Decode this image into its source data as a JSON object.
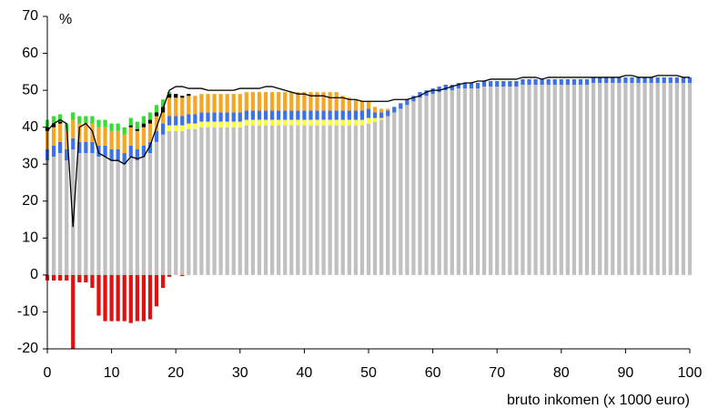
{
  "chart_data": {
    "type": "bar",
    "stacked": true,
    "y_unit_label": "%",
    "x_label": "bruto inkomen (x 1000 euro)",
    "x": [
      0,
      1,
      2,
      3,
      4,
      5,
      6,
      7,
      8,
      9,
      10,
      11,
      12,
      13,
      14,
      15,
      16,
      17,
      18,
      19,
      20,
      21,
      22,
      23,
      24,
      25,
      26,
      27,
      28,
      29,
      30,
      31,
      32,
      33,
      34,
      35,
      36,
      37,
      38,
      39,
      40,
      41,
      42,
      43,
      44,
      45,
      46,
      47,
      48,
      49,
      50,
      51,
      52,
      53,
      54,
      55,
      56,
      57,
      58,
      59,
      60,
      61,
      62,
      63,
      64,
      65,
      66,
      67,
      68,
      69,
      70,
      71,
      72,
      73,
      74,
      75,
      76,
      77,
      78,
      79,
      80,
      81,
      82,
      83,
      84,
      85,
      86,
      87,
      88,
      89,
      90,
      91,
      92,
      93,
      94,
      95,
      96,
      97,
      98,
      99,
      100
    ],
    "series": [
      {
        "color": "#c0c0c0",
        "values": [
          31,
          32,
          33,
          31,
          34,
          33,
          33,
          33,
          32,
          32,
          31,
          31,
          30,
          32,
          31,
          32,
          33,
          36,
          38,
          39,
          39,
          39,
          39.5,
          39.5,
          40,
          40,
          40,
          40,
          40,
          40,
          40,
          40.5,
          40.5,
          40.5,
          40.5,
          40.5,
          40.5,
          40.5,
          40.5,
          40.5,
          40.5,
          40.5,
          40.5,
          40.5,
          40.5,
          40.5,
          40.5,
          40.5,
          40.5,
          40.5,
          41,
          41.5,
          42,
          43,
          44,
          45,
          46,
          47,
          48,
          48.5,
          49,
          49.5,
          50,
          50,
          50.5,
          50.5,
          50.5,
          50.5,
          51,
          51,
          51,
          51,
          51,
          51,
          51.5,
          51.5,
          51.5,
          51.5,
          51.5,
          51.5,
          51.5,
          51.5,
          51.5,
          51.5,
          51.5,
          52,
          52,
          52,
          52,
          52,
          52,
          52,
          52,
          52,
          52,
          52,
          52,
          52,
          52,
          52,
          52
        ]
      },
      {
        "color": "#ffff33",
        "values": [
          0,
          0,
          0,
          0,
          0,
          0,
          0,
          0,
          0,
          0,
          0,
          0,
          0,
          0,
          0,
          0,
          0,
          0,
          0,
          1.5,
          1.5,
          1.5,
          1.5,
          1.5,
          1.5,
          1.5,
          1.5,
          1.5,
          1.5,
          1.5,
          1.5,
          1.5,
          1.5,
          1.5,
          1.5,
          1.5,
          1.5,
          1.5,
          1.5,
          1.5,
          1.5,
          1.5,
          1.5,
          1.5,
          1.5,
          1.5,
          1.5,
          1.5,
          1.5,
          1.5,
          1.5,
          1,
          0.5,
          0,
          0,
          0,
          0,
          0,
          0,
          0,
          0,
          0,
          0,
          0,
          0,
          0,
          0,
          0,
          0,
          0,
          0,
          0,
          0,
          0,
          0,
          0,
          0,
          0,
          0,
          0,
          0,
          0,
          0,
          0,
          0,
          0,
          0,
          0,
          0,
          0,
          0,
          0,
          0,
          0,
          0,
          0,
          0,
          0,
          0,
          0,
          0
        ]
      },
      {
        "color": "#3d72e6",
        "values": [
          3,
          3,
          3,
          3,
          3,
          3,
          3,
          3,
          3,
          3,
          3,
          3,
          3,
          3,
          3,
          3,
          3,
          3,
          3,
          2.5,
          2.5,
          2.5,
          2.5,
          2.5,
          2.5,
          2.5,
          2.5,
          2.5,
          2.5,
          2.5,
          2.5,
          2.5,
          2.5,
          2.5,
          2.5,
          2.5,
          2.5,
          2.5,
          2.5,
          2.5,
          2.5,
          2.5,
          2.5,
          2.5,
          2.5,
          2.5,
          2.5,
          2.5,
          2.5,
          2.5,
          2.5,
          1.5,
          1.5,
          1.5,
          1.5,
          1.5,
          1.5,
          1.5,
          1.5,
          1.5,
          1.5,
          1.5,
          1.5,
          1.5,
          1.5,
          1.5,
          1.5,
          1.5,
          1.5,
          1.5,
          1.5,
          1.5,
          1.5,
          1.5,
          1.5,
          1.5,
          1.5,
          1.5,
          1.5,
          1.5,
          1.5,
          1.5,
          1.5,
          1.5,
          1.5,
          1.5,
          1.5,
          1.5,
          1.5,
          1.5,
          1.5,
          1.5,
          1.5,
          1.5,
          1.5,
          1.5,
          1.5,
          1.5,
          1.5,
          1.5,
          1.5
        ]
      },
      {
        "color": "#f5a623",
        "values": [
          5,
          5,
          5,
          5,
          5,
          5,
          5,
          5,
          5,
          5,
          5,
          5,
          5,
          5,
          5,
          5,
          5,
          4,
          3,
          5,
          5,
          5,
          5,
          5,
          5,
          5,
          5,
          5,
          5,
          5,
          5,
          5,
          5,
          5,
          5,
          5,
          5,
          5,
          5,
          5,
          5,
          5,
          5,
          5,
          5,
          5,
          4,
          3.5,
          3,
          2.5,
          2,
          1.5,
          1,
          0.5,
          0,
          0,
          0,
          0,
          0,
          0,
          0,
          0,
          0,
          0,
          0,
          0,
          0,
          0,
          0,
          0,
          0,
          0,
          0,
          0,
          0,
          0,
          0,
          0,
          0,
          0,
          0,
          0,
          0,
          0,
          0,
          0,
          0,
          0,
          0,
          0,
          0,
          0,
          0,
          0,
          0,
          0,
          0,
          0,
          0,
          0,
          0
        ]
      },
      {
        "color": "#000000",
        "values": [
          1,
          1,
          0.5,
          0,
          0,
          0,
          0,
          0,
          0,
          0,
          0,
          0,
          0,
          0.5,
          0.5,
          1,
          1,
          1,
          1.5,
          1,
          1,
          0.5,
          0.5,
          0,
          0,
          0,
          0,
          0,
          0,
          0,
          0,
          0,
          0,
          0,
          0,
          0,
          0,
          0,
          0,
          0,
          0,
          0,
          0,
          0,
          0,
          0,
          0,
          0,
          0,
          0,
          0,
          0,
          0,
          0,
          0,
          0,
          0,
          0,
          0,
          0,
          0,
          0,
          0,
          0,
          0,
          0,
          0,
          0,
          0,
          0,
          0,
          0,
          0,
          0,
          0,
          0,
          0,
          0,
          0,
          0,
          0,
          0,
          0,
          0,
          0,
          0,
          0,
          0,
          0,
          0,
          0,
          0,
          0,
          0,
          0,
          0,
          0,
          0,
          0,
          0,
          0
        ]
      },
      {
        "color": "#33dd33",
        "values": [
          2,
          2,
          2,
          2,
          2,
          2,
          2,
          2,
          2,
          2,
          2,
          2,
          2,
          2,
          2,
          2,
          2,
          2,
          2,
          0.5,
          0,
          0,
          0,
          0,
          0,
          0,
          0,
          0,
          0,
          0,
          0,
          0,
          0,
          0,
          0,
          0,
          0,
          0,
          0,
          0,
          0,
          0,
          0,
          0,
          0,
          0,
          0,
          0,
          0,
          0,
          0,
          0,
          0,
          0,
          0,
          0,
          0,
          0,
          0,
          0,
          0,
          0,
          0,
          0,
          0,
          0,
          0,
          0,
          0,
          0,
          0,
          0,
          0,
          0,
          0,
          0,
          0,
          0,
          0,
          0,
          0,
          0,
          0,
          0,
          0,
          0,
          0,
          0,
          0,
          0,
          0,
          0,
          0,
          0,
          0,
          0,
          0,
          0,
          0,
          0,
          0
        ]
      },
      {
        "color": "#e01010",
        "values": [
          -1.5,
          -1.5,
          -1.5,
          -1.5,
          -20,
          -2,
          -2,
          -3.5,
          -11,
          -12.5,
          -12.5,
          -12.5,
          -12.5,
          -13,
          -12.5,
          -12.5,
          -12,
          -8.5,
          -3.5,
          -0.5,
          0,
          -0.3,
          0,
          0,
          0,
          0,
          0,
          0,
          0,
          0,
          0,
          0,
          0,
          0,
          0,
          0,
          0,
          0,
          0,
          0,
          0,
          0,
          0,
          0,
          0,
          0,
          0,
          0,
          0,
          0,
          0,
          0,
          0,
          0,
          0,
          0,
          0,
          0,
          0,
          0,
          0,
          0,
          0,
          0,
          0,
          0,
          0,
          0,
          0,
          0,
          0,
          0,
          0,
          0,
          0,
          0,
          0,
          0,
          0,
          0,
          0,
          0,
          0,
          0,
          0,
          0,
          0,
          0,
          0,
          0,
          0,
          0,
          0,
          0,
          0,
          0,
          0,
          0,
          0,
          0,
          0
        ]
      }
    ],
    "line": {
      "color": "#000000",
      "values": [
        39,
        41,
        42,
        41,
        13,
        40,
        41,
        39,
        33,
        32,
        31,
        31,
        30,
        32,
        31.5,
        32,
        35,
        40,
        45,
        50,
        51,
        51,
        50.5,
        50.5,
        50.5,
        50,
        50,
        50,
        50,
        50,
        50.5,
        50.5,
        50.5,
        50.5,
        51,
        51,
        50.5,
        50,
        49.5,
        49,
        49,
        48.5,
        48.5,
        48.5,
        48,
        48,
        48,
        47.5,
        47.5,
        47,
        47,
        47,
        47,
        47,
        47.5,
        47.5,
        47.5,
        48,
        48.5,
        49.5,
        50,
        50,
        50.5,
        51,
        51.5,
        52,
        52,
        52.5,
        52.5,
        53,
        53,
        53,
        53,
        53,
        53.5,
        53.5,
        53.5,
        53,
        53.5,
        53.5,
        53.5,
        53.5,
        53.5,
        53.5,
        53.5,
        53.5,
        53.5,
        53.5,
        53.5,
        53.5,
        54,
        54,
        53.5,
        53.5,
        53.5,
        54,
        54,
        54,
        54,
        53.5,
        53.5
      ]
    },
    "xlim": [
      0,
      100
    ],
    "xticks": [
      0,
      10,
      20,
      30,
      40,
      50,
      60,
      70,
      80,
      90,
      100
    ],
    "ylim": [
      -20,
      70
    ],
    "yticks": [
      -20,
      -10,
      0,
      10,
      20,
      30,
      40,
      50,
      60,
      70
    ]
  }
}
